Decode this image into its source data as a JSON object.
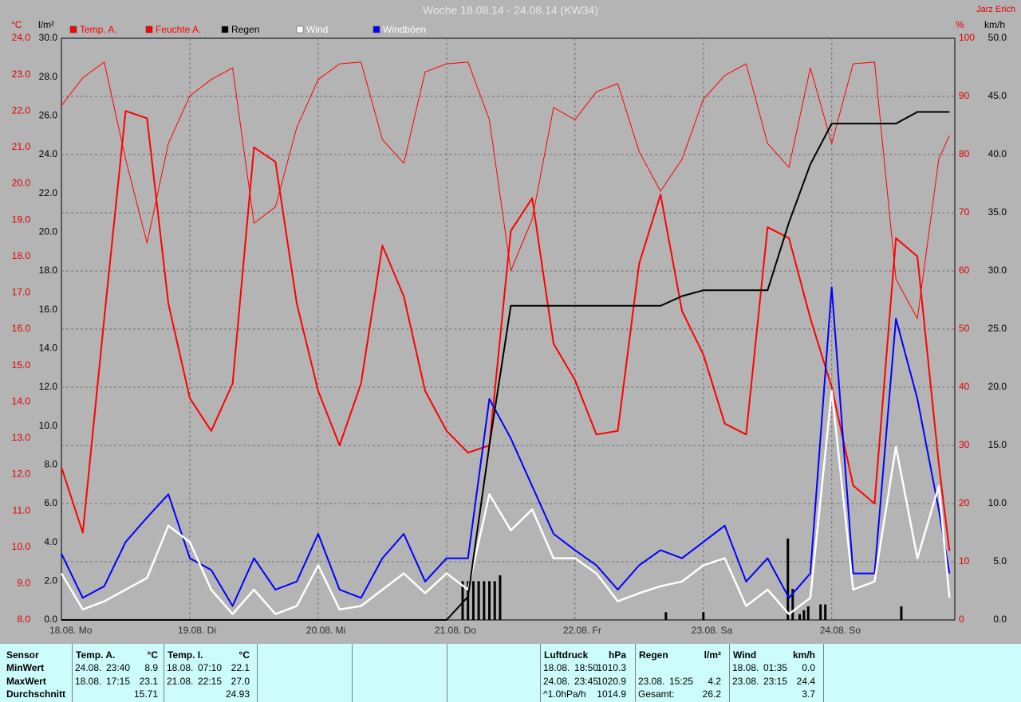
{
  "chart_data": {
    "type": "line",
    "title": "Woche 18.08.14 - 24.08.14 (KW34)",
    "author": "Jarz Erich",
    "y_unit": "°C",
    "y3_unit": "l/m²",
    "y2_unit": "%",
    "y4_unit": "km/h",
    "x": [
      0,
      4,
      8,
      12,
      16,
      20,
      24,
      28,
      32,
      36,
      40,
      44,
      48,
      52,
      56,
      60,
      64,
      68,
      72,
      76,
      80,
      84,
      88,
      92,
      96,
      100,
      104,
      108,
      112,
      116,
      120,
      124,
      128,
      132,
      136,
      140,
      144,
      148,
      152,
      156,
      160,
      164,
      166
    ],
    "xlim": [
      0,
      167
    ],
    "xticks": [
      {
        "value": 0,
        "label": "18.08.  Mo"
      },
      {
        "value": 24,
        "label": "19.08.  Di"
      },
      {
        "value": 48,
        "label": "20.08.  Mi"
      },
      {
        "value": 72,
        "label": "21.08.  Do"
      },
      {
        "value": 96,
        "label": "22.08.  Fr"
      },
      {
        "value": 120,
        "label": "23.08.  Sa"
      },
      {
        "value": 144,
        "label": "24.08.  So"
      }
    ],
    "ylim": [
      8,
      24
    ],
    "yticks": [
      {
        "value": 8,
        "label": "8.0"
      },
      {
        "value": 9,
        "label": "9.0"
      },
      {
        "value": 10,
        "label": "10.0"
      },
      {
        "value": 11,
        "label": "11.0"
      },
      {
        "value": 12,
        "label": "12.0"
      },
      {
        "value": 13,
        "label": "13.0"
      },
      {
        "value": 14,
        "label": "14.0"
      },
      {
        "value": 15,
        "label": "15.0"
      },
      {
        "value": 16,
        "label": "16.0"
      },
      {
        "value": 17,
        "label": "17.0"
      },
      {
        "value": 18,
        "label": "18.0"
      },
      {
        "value": 19,
        "label": "19.0"
      },
      {
        "value": 20,
        "label": "20.0"
      },
      {
        "value": 21,
        "label": "21.0"
      },
      {
        "value": 22,
        "label": "22.0"
      },
      {
        "value": 23,
        "label": "23.0"
      },
      {
        "value": 24,
        "label": "24.0"
      }
    ],
    "y3lim": [
      0,
      30
    ],
    "y3ticks": [
      {
        "value": 0,
        "label": "0.0"
      },
      {
        "value": 2,
        "label": "2.0"
      },
      {
        "value": 4,
        "label": "4.0"
      },
      {
        "value": 6,
        "label": "6.0"
      },
      {
        "value": 8,
        "label": "8.0"
      },
      {
        "value": 10,
        "label": "10.0"
      },
      {
        "value": 12,
        "label": "12.0"
      },
      {
        "value": 14,
        "label": "14.0"
      },
      {
        "value": 16,
        "label": "16.0"
      },
      {
        "value": 18,
        "label": "18.0"
      },
      {
        "value": 20,
        "label": "20.0"
      },
      {
        "value": 22,
        "label": "22.0"
      },
      {
        "value": 24,
        "label": "24.0"
      },
      {
        "value": 26,
        "label": "26.0"
      },
      {
        "value": 28,
        "label": "28.0"
      },
      {
        "value": 30,
        "label": "30.0"
      }
    ],
    "y2lim": [
      0,
      100
    ],
    "y2ticks": [
      0,
      10,
      20,
      30,
      40,
      50,
      60,
      70,
      80,
      90,
      100
    ],
    "y4lim": [
      0,
      50
    ],
    "y4ticks": [
      {
        "value": 0,
        "label": "0.0"
      },
      {
        "value": 5,
        "label": "5.0"
      },
      {
        "value": 10,
        "label": "10.0"
      },
      {
        "value": 15,
        "label": "15.0"
      },
      {
        "value": 20,
        "label": "20.0"
      },
      {
        "value": 25,
        "label": "25.0"
      },
      {
        "value": 30,
        "label": "30.0"
      },
      {
        "value": 35,
        "label": "35.0"
      },
      {
        "value": 40,
        "label": "40.0"
      },
      {
        "value": 45,
        "label": "45.0"
      },
      {
        "value": 50,
        "label": "50.0"
      }
    ],
    "grid": true,
    "grid_axis": "y2",
    "series": [
      {
        "name": "Temp. A.",
        "color": "#ff0000",
        "legend_text_color": "#ff0000",
        "axis": "y",
        "width": 2,
        "values": [
          12.2,
          10.4,
          16.3,
          22.0,
          21.8,
          16.7,
          14.1,
          13.2,
          14.5,
          21.0,
          20.6,
          16.7,
          14.3,
          12.8,
          14.5,
          18.3,
          16.9,
          14.3,
          13.2,
          12.6,
          12.8,
          18.7,
          19.6,
          15.6,
          14.6,
          13.1,
          13.2,
          17.8,
          19.7,
          16.5,
          15.3,
          13.4,
          13.1,
          18.8,
          18.5,
          16.3,
          14.4,
          11.7,
          11.2,
          18.5,
          18.0,
          12.3,
          9.9
        ]
      },
      {
        "name": "Feuchte A.",
        "color": "#ff0000",
        "legend_text_color": "#ff0000",
        "axis": "y2",
        "width": 1,
        "values": [
          88.4,
          93.2,
          95.9,
          79.2,
          64.8,
          81.9,
          90.1,
          92.9,
          94.9,
          68.2,
          71.0,
          84.7,
          92.9,
          95.6,
          95.9,
          82.6,
          78.5,
          94.2,
          95.6,
          95.9,
          86.0,
          60.0,
          68.9,
          88.1,
          86.0,
          90.8,
          92.2,
          80.5,
          73.7,
          79.2,
          89.5,
          93.6,
          95.6,
          81.9,
          77.8,
          94.9,
          81.9,
          95.6,
          95.9,
          58.6,
          51.8,
          79.2,
          83.3
        ]
      },
      {
        "name": "Regen",
        "color": "#000000",
        "legend_text_color": "#000000",
        "axis": "y3",
        "width": 2,
        "values": [
          0,
          0,
          0,
          0,
          0,
          0,
          0,
          0,
          0,
          0,
          0,
          0,
          0,
          0,
          0,
          0,
          0,
          0,
          0,
          1.2,
          9.0,
          16.2,
          16.2,
          16.2,
          16.2,
          16.2,
          16.2,
          16.2,
          16.2,
          16.7,
          17.0,
          17.0,
          17.0,
          17.0,
          20.5,
          23.5,
          25.6,
          25.6,
          25.6,
          25.6,
          26.2,
          26.2,
          26.2
        ]
      },
      {
        "name": "Wind",
        "color": "#ffffff",
        "legend_text_color": "#ffffff",
        "axis": "y4",
        "width": 2.5,
        "values": [
          4.0,
          0.9,
          1.6,
          2.6,
          3.6,
          8.1,
          6.7,
          2.6,
          0.5,
          2.6,
          0.5,
          1.2,
          4.7,
          0.9,
          1.2,
          2.6,
          4.0,
          2.3,
          4.0,
          2.6,
          10.8,
          7.7,
          9.5,
          5.3,
          5.3,
          4.0,
          1.6,
          2.3,
          2.9,
          3.3,
          4.7,
          5.3,
          1.2,
          2.6,
          0.5,
          1.9,
          19.7,
          2.6,
          3.3,
          14.9,
          5.3,
          11.5,
          1.9
        ]
      },
      {
        "name": "Windböen",
        "color": "#0000ff",
        "legend_text_color": "#ffffff",
        "axis": "y4",
        "width": 2,
        "values": [
          5.7,
          1.9,
          2.9,
          6.7,
          8.8,
          10.8,
          5.3,
          4.3,
          1.2,
          5.3,
          2.6,
          3.3,
          7.4,
          2.6,
          1.9,
          5.3,
          7.4,
          3.3,
          5.3,
          5.3,
          19.0,
          15.6,
          11.5,
          7.4,
          6.0,
          4.7,
          2.6,
          4.7,
          6.0,
          5.3,
          6.7,
          8.1,
          3.3,
          5.3,
          1.9,
          4.0,
          28.6,
          4.0,
          4.0,
          25.9,
          19.0,
          9.5,
          4.0
        ]
      }
    ],
    "rain_bars": {
      "color": "#000000",
      "axis": "y3",
      "x": [
        75,
        76,
        77,
        78,
        79,
        80,
        81,
        82,
        113,
        120,
        135.8,
        136.7,
        138,
        138.8,
        139.6,
        141.9,
        142.8,
        157
      ],
      "values": [
        2.0,
        2.0,
        2.0,
        2.0,
        2.0,
        2.0,
        2.0,
        2.3,
        0.4,
        0.4,
        4.2,
        1.6,
        0.3,
        0.5,
        0.7,
        0.8,
        0.8,
        0.7
      ]
    }
  },
  "stats": {
    "row_labels": [
      "Sensor",
      "MinWert",
      "MaxWert",
      "Durchschnitt"
    ],
    "blocks": [
      {
        "title": "Temp. A.",
        "unit": "°C",
        "rows": [
          {
            "date": "24.08.",
            "time": "23:40",
            "value": "8.9"
          },
          {
            "date": "18.08.",
            "time": "17:15",
            "value": "23.1"
          },
          {
            "value": "15.71"
          }
        ]
      },
      {
        "title": "Temp. I.",
        "unit": "°C",
        "rows": [
          {
            "date": "18.08.",
            "time": "07:10",
            "value": "22.1"
          },
          {
            "date": "21.08.",
            "time": "22:15",
            "value": "27.0"
          },
          {
            "value": "24.93"
          }
        ]
      },
      {
        "title": "Luftdruck",
        "unit": "hPa",
        "rows": [
          {
            "date": "18.08.",
            "time": "18:50",
            "value": "1010.3"
          },
          {
            "date": "24.08.",
            "time": "23:45",
            "value": "1020.9"
          },
          {
            "date": "^1.0hPa/h",
            "value": "1014.9"
          }
        ]
      },
      {
        "title": "Regen",
        "unit": "l/m²",
        "rows": [
          null,
          {
            "date": "23.08.",
            "time": "15:25",
            "value": "4.2"
          },
          {
            "date": "Gesamt:",
            "value": "26.2"
          }
        ]
      },
      {
        "title": "Wind",
        "unit": "km/h",
        "rows": [
          {
            "date": "18.08.",
            "time": "01:35",
            "value": "0.0"
          },
          {
            "date": "23.08.",
            "time": "23:15",
            "value": "24.4"
          },
          {
            "value": "3.7"
          }
        ]
      }
    ]
  }
}
